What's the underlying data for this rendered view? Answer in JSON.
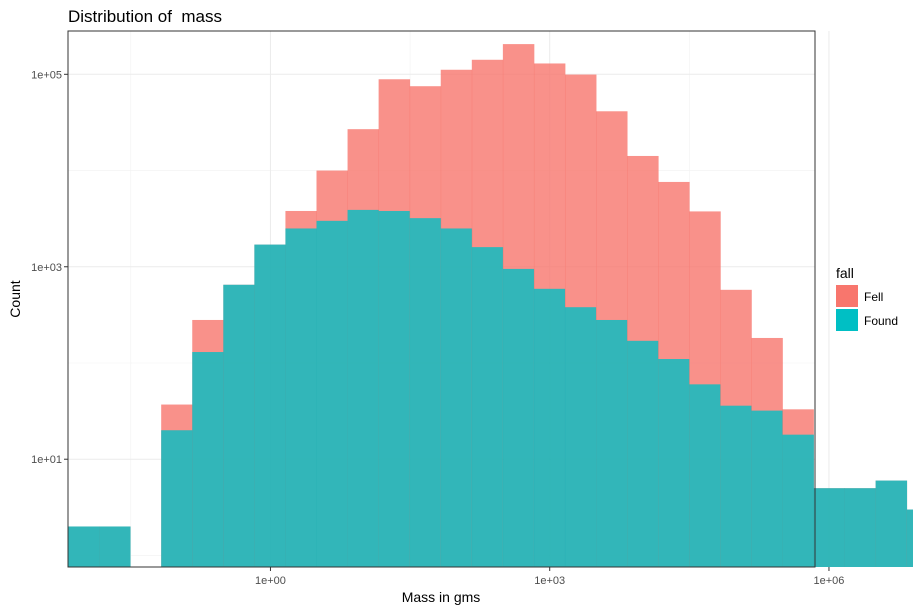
{
  "chart_data": {
    "type": "bar",
    "subtype": "stacked-histogram",
    "title": "Distribution of  mass",
    "xlabel": "Mass in gms",
    "ylabel": "Count",
    "x_scale": "log10",
    "y_scale": "log10",
    "xlim_log10": [
      -2.175,
      5.85
    ],
    "ylim_log10": [
      -0.12,
      5.45
    ],
    "x_ticks": [
      {
        "log10": 0,
        "label": "1e+00"
      },
      {
        "log10": 3,
        "label": "1e+03"
      },
      {
        "log10": 6,
        "label": "1e+06"
      }
    ],
    "y_ticks": [
      {
        "log10": 1,
        "label": "1e+01"
      },
      {
        "log10": 3,
        "label": "1e+03"
      },
      {
        "log10": 5,
        "label": "1e+05"
      }
    ],
    "grid": true,
    "legend": {
      "title": "fall",
      "position": "right"
    },
    "bin_width_log10": 0.3337,
    "bin_start_log10": -2.175,
    "series": [
      {
        "name": "Found",
        "color": "#00BFC4",
        "counts": [
          2,
          2,
          0,
          20,
          130,
          650,
          1700,
          2500,
          3000,
          3900,
          3800,
          3200,
          2500,
          1600,
          950,
          590,
          380,
          280,
          170,
          110,
          60,
          36,
          32,
          18,
          5,
          5,
          6,
          3,
          3
        ]
      },
      {
        "name": "Fell",
        "color": "#F8766D",
        "counts": [
          0,
          0,
          0,
          17,
          150,
          0,
          0,
          1300,
          7000,
          23000,
          85000,
          72000,
          109000,
          140000,
          205000,
          129000,
          99000,
          41000,
          14000,
          7500,
          3700,
          540,
          150,
          15,
          0,
          0,
          0,
          0,
          0
        ]
      }
    ]
  }
}
